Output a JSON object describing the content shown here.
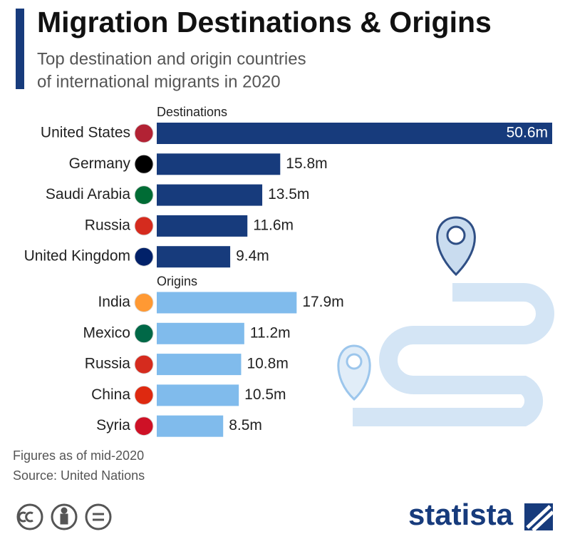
{
  "chart_data": {
    "type": "bar",
    "title": "Migration Destinations & Origins",
    "subtitle": [
      "Top destination and origin countries",
      "of international migrants in 2020"
    ],
    "groups": [
      {
        "name": "Destinations",
        "color": "#173b7c",
        "categories": [
          "United States",
          "Germany",
          "Saudi Arabia",
          "Russia",
          "United Kingdom"
        ],
        "values": [
          50.6,
          15.8,
          13.5,
          11.6,
          9.4
        ],
        "value_labels": [
          "50.6m",
          "15.8m",
          "13.5m",
          "11.6m",
          "9.4m"
        ]
      },
      {
        "name": "Origins",
        "color": "#80bbec",
        "categories": [
          "India",
          "Mexico",
          "Russia",
          "China",
          "Syria"
        ],
        "values": [
          17.9,
          11.2,
          10.8,
          10.5,
          8.5
        ],
        "value_labels": [
          "17.9m",
          "11.2m",
          "10.8m",
          "10.5m",
          "8.5m"
        ]
      }
    ],
    "notes": [
      "Figures as of mid-2020",
      "Source: United Nations"
    ],
    "brand": "statista"
  }
}
